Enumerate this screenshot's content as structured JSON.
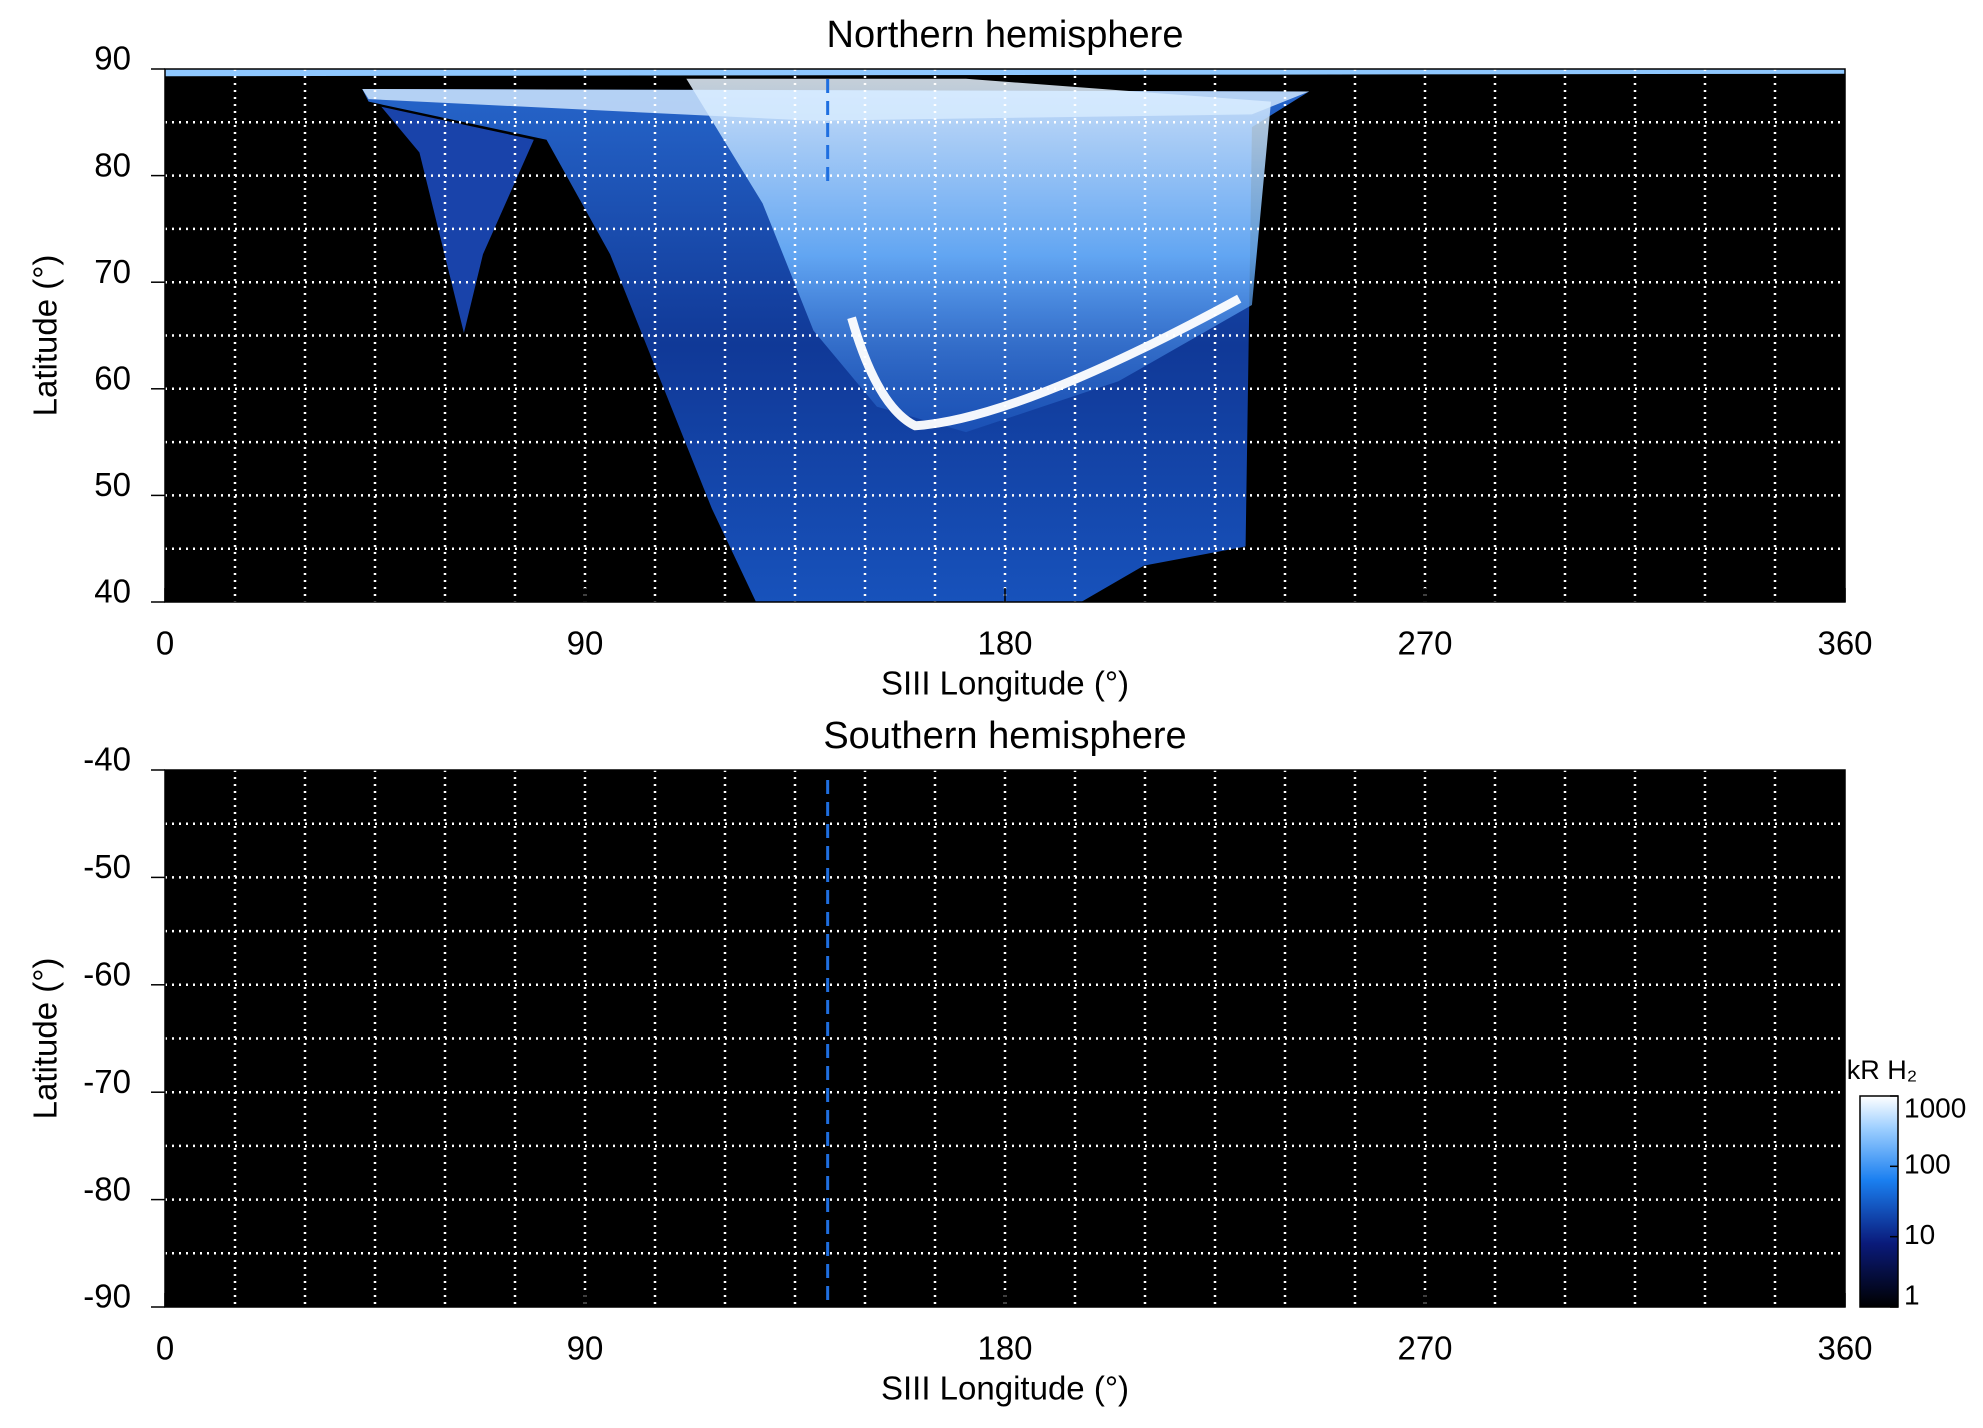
{
  "chart_data": [
    {
      "type": "heatmap",
      "title": "Northern hemisphere",
      "x_label": "SIII Longitude (°)",
      "y_label": "Latitude (°)",
      "xlim": [
        0,
        360
      ],
      "xticks": [
        0,
        90,
        180,
        270,
        360
      ],
      "ylim": [
        40,
        90
      ],
      "yticks": [
        40,
        50,
        60,
        70,
        80,
        90
      ],
      "xgrid": [
        15,
        30,
        45,
        60,
        75,
        90,
        105,
        120,
        135,
        150,
        165,
        180,
        195,
        210,
        225,
        240,
        255,
        270,
        285,
        300,
        315,
        330,
        345
      ],
      "ygrid": [
        45,
        50,
        55,
        60,
        65,
        70,
        75,
        80,
        85
      ],
      "marker_longitude": 142,
      "marker_color": "#1f6fe0"
    },
    {
      "type": "heatmap",
      "title": "Southern hemisphere",
      "x_label": "SIII Longitude (°)",
      "y_label": "Latitude (°)",
      "xlim": [
        0,
        360
      ],
      "xticks": [
        0,
        90,
        180,
        270,
        360
      ],
      "ylim": [
        -90,
        -40
      ],
      "yticks": [
        -90,
        -80,
        -70,
        -60,
        -50,
        -40
      ],
      "xgrid": [
        15,
        30,
        45,
        60,
        75,
        90,
        105,
        120,
        135,
        150,
        165,
        180,
        195,
        210,
        225,
        240,
        255,
        270,
        285,
        300,
        315,
        330,
        345
      ],
      "ygrid": [
        -85,
        -80,
        -75,
        -70,
        -65,
        -60,
        -55,
        -50,
        -45
      ],
      "marker_longitude": 142,
      "marker_color": "#1f6fe0",
      "colorbar": {
        "label": "kR H₂",
        "scale": "log",
        "lim": [
          1,
          1000
        ],
        "ticks": [
          1,
          10,
          100,
          1000
        ]
      }
    }
  ]
}
